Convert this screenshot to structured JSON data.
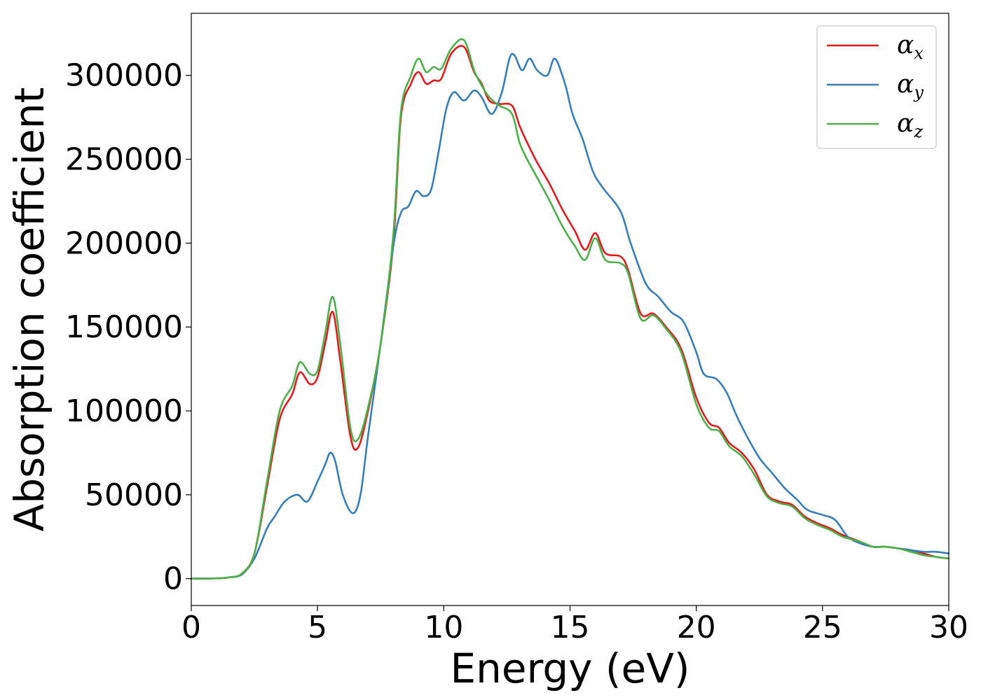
{
  "chart_data": {
    "type": "line",
    "title": "",
    "xlabel": "Energy (eV)",
    "ylabel": "Absorption coefficient",
    "xlim": [
      0,
      30
    ],
    "ylim": [
      -16000,
      337000
    ],
    "xticks": [
      0,
      5,
      10,
      15,
      20,
      25,
      30
    ],
    "yticks": [
      0,
      50000,
      100000,
      150000,
      200000,
      250000,
      300000
    ],
    "grid": false,
    "legend_position": "top-right",
    "series": [
      {
        "name": "α_x",
        "label_base": "α",
        "label_sub": "x",
        "color": "#e41a1c",
        "points": [
          [
            0,
            0
          ],
          [
            1,
            200
          ],
          [
            1.5,
            800
          ],
          [
            2,
            3000
          ],
          [
            2.5,
            15000
          ],
          [
            3,
            55000
          ],
          [
            3.5,
            95000
          ],
          [
            4,
            110000
          ],
          [
            4.3,
            123000
          ],
          [
            4.7,
            116000
          ],
          [
            5,
            120000
          ],
          [
            5.3,
            140000
          ],
          [
            5.6,
            159000
          ],
          [
            5.9,
            130000
          ],
          [
            6.3,
            85000
          ],
          [
            6.6,
            78000
          ],
          [
            7,
            100000
          ],
          [
            7.5,
            140000
          ],
          [
            8,
            200000
          ],
          [
            8.3,
            275000
          ],
          [
            8.7,
            295000
          ],
          [
            9,
            302000
          ],
          [
            9.3,
            295000
          ],
          [
            9.6,
            297000
          ],
          [
            9.9,
            298000
          ],
          [
            10.3,
            313000
          ],
          [
            10.8,
            317000
          ],
          [
            11.2,
            302000
          ],
          [
            11.5,
            295000
          ],
          [
            11.8,
            285000
          ],
          [
            12.2,
            283000
          ],
          [
            12.7,
            282000
          ],
          [
            13,
            270000
          ],
          [
            13.3,
            260000
          ],
          [
            13.7,
            248000
          ],
          [
            14.2,
            235000
          ],
          [
            14.7,
            220000
          ],
          [
            15.2,
            207000
          ],
          [
            15.6,
            196000
          ],
          [
            16,
            206000
          ],
          [
            16.4,
            194000
          ],
          [
            17,
            192000
          ],
          [
            17.3,
            184000
          ],
          [
            17.8,
            158000
          ],
          [
            18.3,
            158000
          ],
          [
            18.8,
            150000
          ],
          [
            19.4,
            137000
          ],
          [
            20,
            108000
          ],
          [
            20.5,
            93000
          ],
          [
            20.9,
            90000
          ],
          [
            21.3,
            81000
          ],
          [
            21.8,
            75000
          ],
          [
            22.3,
            65000
          ],
          [
            22.8,
            50000
          ],
          [
            23.3,
            46000
          ],
          [
            23.8,
            44000
          ],
          [
            24.3,
            37000
          ],
          [
            24.8,
            33000
          ],
          [
            25.3,
            30000
          ],
          [
            25.8,
            26000
          ],
          [
            26.5,
            22000
          ],
          [
            27,
            19000
          ],
          [
            27.5,
            19000
          ],
          [
            28,
            18000
          ],
          [
            28.5,
            17000
          ],
          [
            29,
            15000
          ],
          [
            29.5,
            13000
          ],
          [
            30,
            12000
          ]
        ]
      },
      {
        "name": "α_y",
        "label_base": "α",
        "label_sub": "y",
        "color": "#377eb8",
        "points": [
          [
            0,
            0
          ],
          [
            1,
            200
          ],
          [
            1.5,
            800
          ],
          [
            2,
            2500
          ],
          [
            2.5,
            12000
          ],
          [
            3,
            30000
          ],
          [
            3.3,
            37000
          ],
          [
            3.7,
            46000
          ],
          [
            4.2,
            50000
          ],
          [
            4.6,
            46000
          ],
          [
            5,
            58000
          ],
          [
            5.3,
            68000
          ],
          [
            5.5,
            75000
          ],
          [
            5.7,
            70000
          ],
          [
            6,
            50000
          ],
          [
            6.4,
            39000
          ],
          [
            6.7,
            50000
          ],
          [
            7,
            85000
          ],
          [
            7.5,
            140000
          ],
          [
            8,
            198000
          ],
          [
            8.3,
            218000
          ],
          [
            8.6,
            222000
          ],
          [
            8.9,
            231000
          ],
          [
            9.2,
            228000
          ],
          [
            9.5,
            232000
          ],
          [
            9.8,
            255000
          ],
          [
            10.1,
            280000
          ],
          [
            10.4,
            290000
          ],
          [
            10.8,
            285000
          ],
          [
            11.2,
            291000
          ],
          [
            11.5,
            287000
          ],
          [
            11.9,
            277000
          ],
          [
            12.3,
            290000
          ],
          [
            12.6,
            310000
          ],
          [
            12.8,
            312000
          ],
          [
            13.1,
            303000
          ],
          [
            13.4,
            310000
          ],
          [
            13.7,
            303000
          ],
          [
            14.1,
            300000
          ],
          [
            14.4,
            310000
          ],
          [
            14.8,
            295000
          ],
          [
            15.1,
            277000
          ],
          [
            15.5,
            262000
          ],
          [
            15.9,
            243000
          ],
          [
            16.3,
            233000
          ],
          [
            17,
            219000
          ],
          [
            17.4,
            200000
          ],
          [
            18,
            176000
          ],
          [
            18.5,
            168000
          ],
          [
            19,
            159000
          ],
          [
            19.5,
            153000
          ],
          [
            20,
            135000
          ],
          [
            20.3,
            122000
          ],
          [
            20.8,
            119000
          ],
          [
            21.2,
            111000
          ],
          [
            21.6,
            97000
          ],
          [
            22,
            85000
          ],
          [
            22.5,
            72000
          ],
          [
            23,
            63000
          ],
          [
            23.5,
            54000
          ],
          [
            24,
            47000
          ],
          [
            24.4,
            41000
          ],
          [
            25,
            38000
          ],
          [
            25.5,
            35000
          ],
          [
            26,
            25000
          ],
          [
            26.5,
            21000
          ],
          [
            27,
            19000
          ],
          [
            27.5,
            19000
          ],
          [
            28,
            18000
          ],
          [
            28.5,
            17000
          ],
          [
            29,
            16000
          ],
          [
            29.5,
            16000
          ],
          [
            30,
            15000
          ]
        ]
      },
      {
        "name": "α_z",
        "label_base": "α",
        "label_sub": "z",
        "color": "#4daf4a",
        "points": [
          [
            0,
            0
          ],
          [
            1,
            200
          ],
          [
            1.5,
            800
          ],
          [
            2,
            3000
          ],
          [
            2.5,
            15000
          ],
          [
            3,
            58000
          ],
          [
            3.5,
            100000
          ],
          [
            4,
            115000
          ],
          [
            4.3,
            129000
          ],
          [
            4.7,
            122000
          ],
          [
            5,
            124000
          ],
          [
            5.3,
            146000
          ],
          [
            5.6,
            168000
          ],
          [
            5.9,
            140000
          ],
          [
            6.3,
            90000
          ],
          [
            6.6,
            83000
          ],
          [
            7,
            102000
          ],
          [
            7.5,
            140000
          ],
          [
            8,
            205000
          ],
          [
            8.3,
            278000
          ],
          [
            8.7,
            300000
          ],
          [
            9,
            310000
          ],
          [
            9.3,
            302000
          ],
          [
            9.6,
            305000
          ],
          [
            9.9,
            304000
          ],
          [
            10.3,
            316000
          ],
          [
            10.8,
            321000
          ],
          [
            11.2,
            303000
          ],
          [
            11.5,
            294000
          ],
          [
            11.8,
            287000
          ],
          [
            12.2,
            282000
          ],
          [
            12.7,
            277000
          ],
          [
            13,
            260000
          ],
          [
            13.3,
            250000
          ],
          [
            13.7,
            239000
          ],
          [
            14.2,
            225000
          ],
          [
            14.7,
            210000
          ],
          [
            15.2,
            198000
          ],
          [
            15.6,
            190000
          ],
          [
            16,
            203000
          ],
          [
            16.4,
            190000
          ],
          [
            17,
            188000
          ],
          [
            17.3,
            182000
          ],
          [
            17.8,
            155000
          ],
          [
            18.3,
            157000
          ],
          [
            18.8,
            149000
          ],
          [
            19.4,
            135000
          ],
          [
            20,
            104000
          ],
          [
            20.5,
            90000
          ],
          [
            20.9,
            88000
          ],
          [
            21.3,
            79000
          ],
          [
            21.8,
            73000
          ],
          [
            22.3,
            62000
          ],
          [
            22.8,
            49000
          ],
          [
            23.3,
            45000
          ],
          [
            23.8,
            43000
          ],
          [
            24.3,
            36000
          ],
          [
            24.8,
            32000
          ],
          [
            25.3,
            29000
          ],
          [
            25.8,
            25000
          ],
          [
            26.5,
            22000
          ],
          [
            27,
            19000
          ],
          [
            27.5,
            19000
          ],
          [
            28,
            18000
          ],
          [
            28.5,
            16000
          ],
          [
            29,
            14000
          ],
          [
            29.5,
            13000
          ],
          [
            30,
            12000
          ]
        ]
      }
    ]
  }
}
